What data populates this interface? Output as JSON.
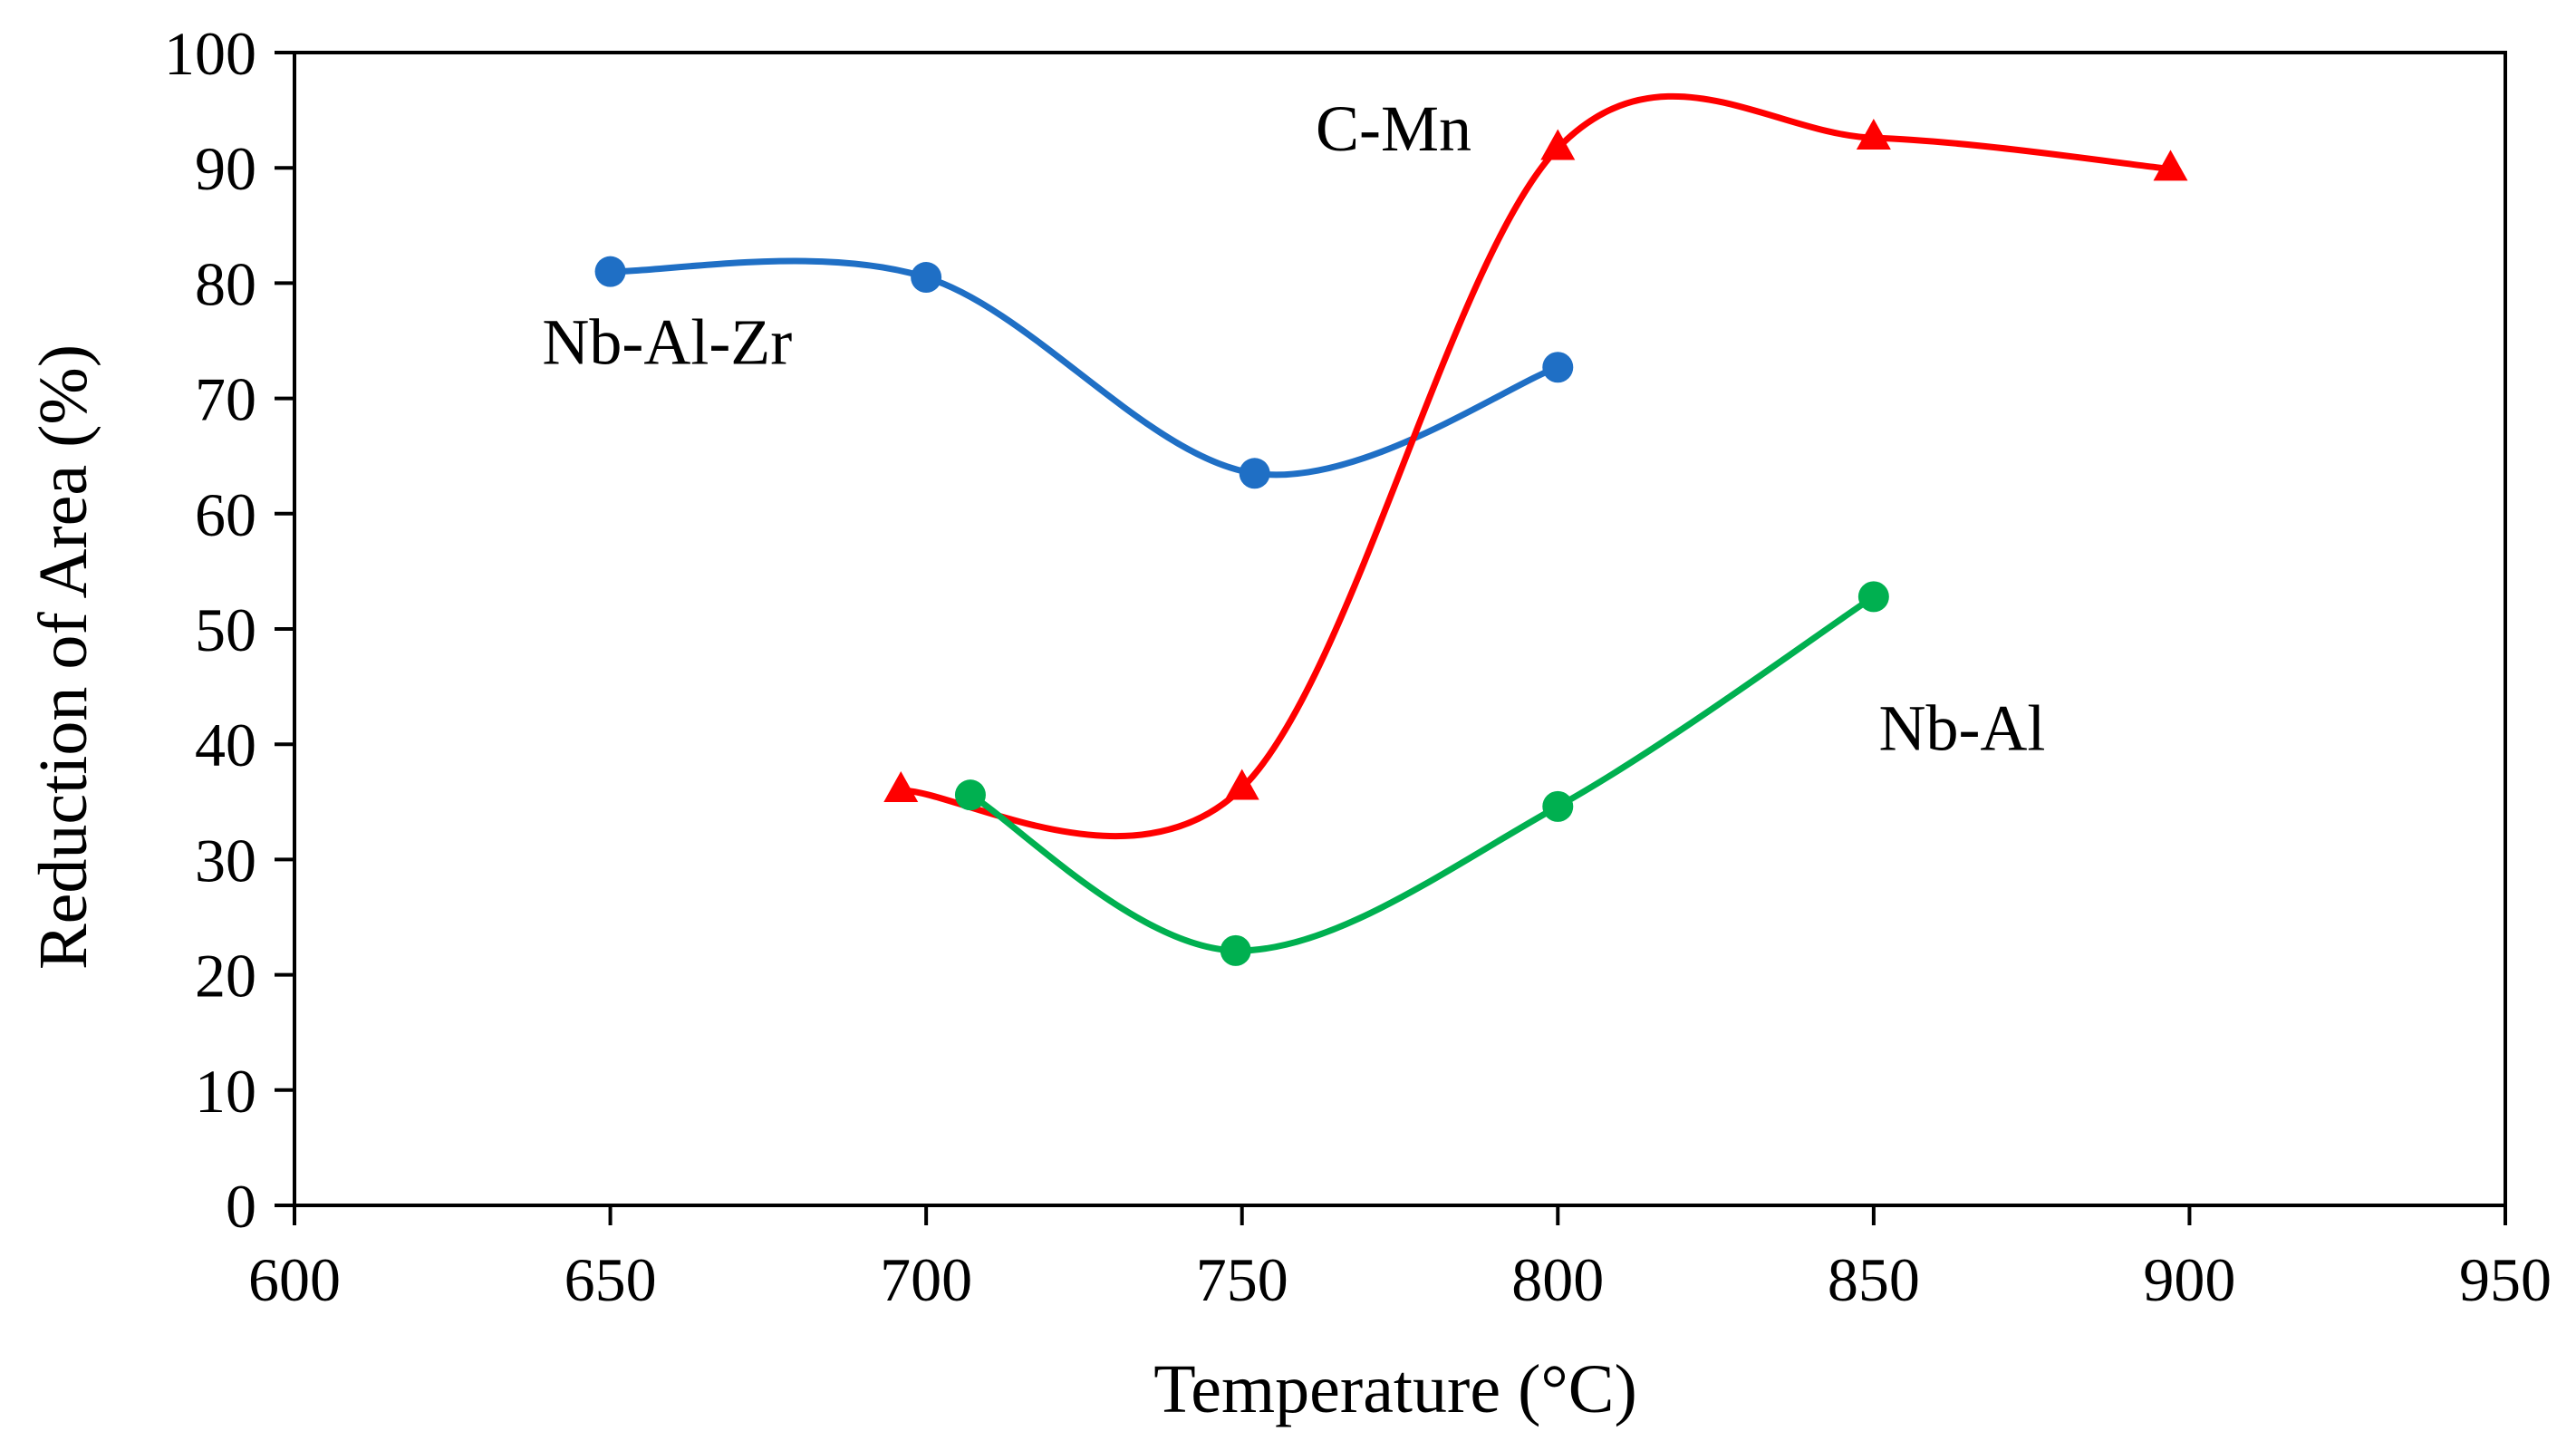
{
  "chart_data": {
    "type": "line",
    "title": "",
    "xlabel": "Temperature (°C)",
    "ylabel": "Reduction of Area (%)",
    "xlim": [
      600,
      950
    ],
    "ylim": [
      0,
      100
    ],
    "xticks": [
      600,
      650,
      700,
      750,
      800,
      850,
      900,
      950
    ],
    "yticks": [
      0,
      10,
      20,
      30,
      40,
      50,
      60,
      70,
      80,
      90,
      100
    ],
    "grid": false,
    "legend": "none",
    "series": [
      {
        "name": "Nb-Al-Zr",
        "color": "#1f6fc5",
        "marker": "circle",
        "smooth": true,
        "x": [
          650,
          700,
          752,
          800
        ],
        "y": [
          81,
          80.5,
          63.5,
          72.7
        ]
      },
      {
        "name": "C-Mn",
        "color": "#ff0000",
        "marker": "triangle",
        "smooth": true,
        "x": [
          696,
          750,
          800,
          850,
          897
        ],
        "y": [
          36,
          36.2,
          91.7,
          92.6,
          89.9
        ]
      },
      {
        "name": "Nb-Al",
        "color": "#00b050",
        "marker": "circle",
        "smooth": true,
        "x": [
          707,
          749,
          800,
          850
        ],
        "y": [
          35.6,
          22.1,
          34.6,
          52.8
        ]
      }
    ],
    "annotations": [
      {
        "text": "Nb-Al-Zr",
        "x": 659,
        "y": 73
      },
      {
        "text": "C-Mn",
        "x": 774,
        "y": 91.5
      },
      {
        "text": "Nb-Al",
        "x": 864,
        "y": 39.5
      }
    ]
  }
}
